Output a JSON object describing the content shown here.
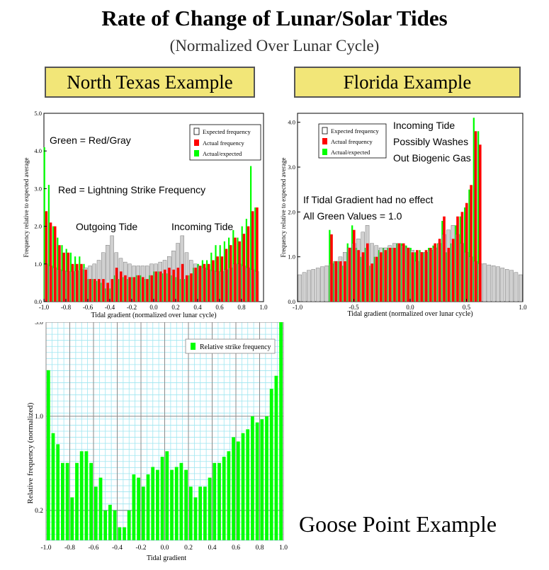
{
  "header": {
    "title": "Rate of Change of Lunar/Solar Tides",
    "subtitle": "(Normalized Over Lunar Cycle)"
  },
  "panels": {
    "north_texas_label": "North Texas Example",
    "florida_label": "Florida Example",
    "goose_point_label": "Goose Point Example"
  },
  "colors": {
    "expected": "#c8c8c8",
    "actual": "#ff0000",
    "ratio": "#00ff00",
    "label_box": "#f2e678",
    "grid_cyan": "#9fe6f0"
  },
  "chart_data": [
    {
      "id": "north_texas",
      "type": "bar",
      "xlabel": "Tidal gradient (normalized over lunar cycle)",
      "ylabel": "Frequency relative to expected average",
      "xlim": [
        -1.0,
        1.0
      ],
      "ylim": [
        0.0,
        5.0
      ],
      "xticks": [
        "-1.0",
        "-0.8",
        "-0.6",
        "-0.4",
        "-0.2",
        "0.0",
        "0.2",
        "0.4",
        "0.6",
        "0.8",
        "1.0"
      ],
      "yticks": [
        "0.0",
        "1.0",
        "2.0",
        "3.0",
        "4.0",
        "5.0"
      ],
      "legend_position": "top-right",
      "legend": [
        "Expected frequency",
        "Actual frequency",
        "Actual/expected"
      ],
      "annotations": [
        "Green = Red/Gray",
        "Red = Lightning Strike Frequency",
        "Outgoing Tide",
        "Incoming Tide"
      ],
      "x": [
        -0.98,
        -0.94,
        -0.9,
        -0.86,
        -0.82,
        -0.78,
        -0.74,
        -0.7,
        -0.66,
        -0.62,
        -0.58,
        -0.54,
        -0.5,
        -0.46,
        -0.42,
        -0.38,
        -0.34,
        -0.3,
        -0.26,
        -0.22,
        -0.18,
        -0.14,
        -0.1,
        -0.06,
        -0.02,
        0.02,
        0.06,
        0.1,
        0.14,
        0.18,
        0.22,
        0.26,
        0.3,
        0.34,
        0.38,
        0.42,
        0.46,
        0.5,
        0.54,
        0.58,
        0.62,
        0.66,
        0.7,
        0.74,
        0.78,
        0.82,
        0.86,
        0.9,
        0.94
      ],
      "series": [
        {
          "name": "Expected frequency",
          "values": [
            1.0,
            0.95,
            0.9,
            0.85,
            0.82,
            0.8,
            0.8,
            0.82,
            0.85,
            0.9,
            0.95,
            1.0,
            1.1,
            1.3,
            1.5,
            1.75,
            1.3,
            1.15,
            1.05,
            1.0,
            0.95,
            0.95,
            0.95,
            0.95,
            1.0,
            1.0,
            1.05,
            1.1,
            1.2,
            1.35,
            1.55,
            1.75,
            1.3,
            1.1,
            1.0,
            0.95,
            0.9,
            0.85,
            0.82,
            0.8,
            0.8,
            0.85,
            0.9,
            1.0,
            1.0,
            0.95,
            0.9,
            0.85,
            0.8
          ]
        },
        {
          "name": "Actual frequency",
          "values": [
            2.4,
            2.1,
            2.0,
            1.5,
            1.3,
            1.3,
            1.0,
            1.0,
            1.0,
            0.85,
            0.6,
            0.6,
            0.6,
            0.6,
            0.5,
            0.6,
            0.9,
            0.8,
            0.7,
            0.65,
            0.65,
            0.7,
            0.65,
            0.6,
            0.7,
            0.8,
            0.8,
            0.85,
            0.9,
            0.85,
            0.9,
            1.0,
            0.7,
            0.75,
            0.9,
            0.95,
            1.0,
            1.0,
            1.1,
            1.2,
            1.2,
            1.4,
            1.5,
            1.7,
            1.6,
            1.8,
            2.0,
            2.4,
            2.5
          ]
        },
        {
          "name": "Actual/expected",
          "values": [
            4.1,
            3.1,
            2.0,
            1.7,
            1.5,
            1.4,
            1.3,
            1.2,
            1.2,
            1.0,
            0.6,
            0.6,
            0.55,
            0.5,
            0.35,
            0.35,
            0.7,
            0.6,
            0.65,
            0.6,
            0.65,
            0.7,
            0.7,
            0.6,
            0.7,
            0.8,
            0.8,
            0.75,
            0.75,
            0.7,
            0.65,
            0.6,
            0.6,
            0.7,
            0.9,
            1.0,
            1.1,
            1.1,
            1.3,
            1.5,
            1.5,
            1.6,
            1.7,
            1.9,
            1.7,
            2.0,
            2.2,
            3.6,
            2.5
          ]
        }
      ]
    },
    {
      "id": "florida",
      "type": "bar",
      "xlabel": "Tidal gradient (normalized over lunar cycle)",
      "ylabel": "Frequency relative to expected average",
      "xlim": [
        -1.0,
        1.0
      ],
      "ylim": [
        0.0,
        4.2
      ],
      "xticks": [
        "-1.0",
        "-0.5",
        "0.0",
        "0.5",
        "1.0"
      ],
      "yticks": [
        "0.0",
        "1.0",
        "2.0",
        "3.0",
        "4.0"
      ],
      "legend_position": "top-left",
      "legend": [
        "Expected frequency",
        "Actual frequency",
        "Actual/expected"
      ],
      "annotations": [
        "Incoming Tide",
        "Possibly Washes",
        "Out Biogenic Gas",
        "If Tidal Gradient had no effect",
        "All Green Values = 1.0"
      ],
      "x": [
        -0.98,
        -0.94,
        -0.9,
        -0.86,
        -0.82,
        -0.78,
        -0.74,
        -0.7,
        -0.66,
        -0.62,
        -0.58,
        -0.54,
        -0.5,
        -0.46,
        -0.42,
        -0.38,
        -0.34,
        -0.3,
        -0.26,
        -0.22,
        -0.18,
        -0.14,
        -0.1,
        -0.06,
        -0.02,
        0.02,
        0.06,
        0.1,
        0.14,
        0.18,
        0.22,
        0.26,
        0.3,
        0.34,
        0.38,
        0.42,
        0.46,
        0.5,
        0.54,
        0.58,
        0.62,
        0.66,
        0.7,
        0.74,
        0.78,
        0.82,
        0.86,
        0.9,
        0.94,
        0.98
      ],
      "series": [
        {
          "name": "Expected frequency",
          "values": [
            0.6,
            0.65,
            0.7,
            0.72,
            0.75,
            0.78,
            0.8,
            0.85,
            0.9,
            1.0,
            1.1,
            1.2,
            1.3,
            1.4,
            1.55,
            1.7,
            1.3,
            1.25,
            1.2,
            1.2,
            1.25,
            1.3,
            1.3,
            1.25,
            1.2,
            1.15,
            0.9,
            1.1,
            1.1,
            1.15,
            1.2,
            1.3,
            1.5,
            1.6,
            1.7,
            1.5,
            1.3,
            1.1,
            1.0,
            0.9,
            0.85,
            0.85,
            0.82,
            0.8,
            0.78,
            0.75,
            0.72,
            0.7,
            0.65,
            0.6
          ]
        },
        {
          "name": "Actual frequency",
          "values": [
            0,
            0,
            0,
            0,
            0,
            0,
            0,
            1.5,
            0.9,
            0.9,
            0.9,
            1.2,
            1.6,
            1.15,
            1.1,
            1.3,
            0.85,
            1.0,
            1.1,
            1.15,
            1.2,
            1.2,
            1.3,
            1.3,
            1.2,
            1.1,
            1.15,
            1.1,
            1.15,
            1.2,
            1.3,
            1.4,
            1.9,
            1.2,
            1.4,
            1.9,
            2.0,
            2.2,
            2.6,
            3.8,
            3.5,
            0,
            0,
            0,
            0,
            0,
            0,
            0,
            0,
            0
          ]
        },
        {
          "name": "Actual/expected",
          "values": [
            0,
            0,
            0,
            0,
            0,
            0,
            0,
            1.6,
            0.9,
            0.9,
            0.8,
            1.3,
            1.7,
            1.2,
            1.0,
            1.2,
            0.8,
            1.0,
            1.15,
            1.2,
            1.2,
            1.2,
            1.3,
            1.3,
            1.25,
            1.2,
            1.1,
            1.15,
            1.1,
            1.2,
            1.25,
            1.3,
            1.8,
            1.1,
            1.3,
            1.7,
            1.9,
            2.1,
            2.5,
            4.1,
            3.8,
            0,
            0,
            0,
            0,
            0,
            0,
            0,
            0,
            0
          ]
        }
      ]
    },
    {
      "id": "goose_point",
      "type": "bar",
      "xlabel": "Tidal gradient",
      "ylabel": "Relative frequency (normalized)",
      "xlim": [
        -1.0,
        1.0
      ],
      "ylim": [
        0.12,
        5.0
      ],
      "yscale": "log",
      "grid": true,
      "xticks": [
        "-1.0",
        "-0.8",
        "-0.6",
        "-0.4",
        "-0.2",
        "0.0",
        "0.2",
        "0.4",
        "0.6",
        "0.8",
        "1.0"
      ],
      "yticks": [
        "0.2",
        "1.0",
        "5.0"
      ],
      "legend_position": "top-right",
      "legend": [
        "Relative strike frequency"
      ],
      "x": [
        -0.98,
        -0.94,
        -0.9,
        -0.86,
        -0.82,
        -0.78,
        -0.74,
        -0.7,
        -0.66,
        -0.62,
        -0.58,
        -0.54,
        -0.5,
        -0.46,
        -0.42,
        -0.38,
        -0.34,
        -0.3,
        -0.26,
        -0.22,
        -0.18,
        -0.14,
        -0.1,
        -0.06,
        -0.02,
        0.02,
        0.06,
        0.1,
        0.14,
        0.18,
        0.22,
        0.26,
        0.3,
        0.34,
        0.38,
        0.42,
        0.46,
        0.5,
        0.54,
        0.58,
        0.62,
        0.66,
        0.7,
        0.74,
        0.78,
        0.82,
        0.86,
        0.9,
        0.94,
        0.98
      ],
      "series": [
        {
          "name": "Relative strike frequency",
          "values": [
            2.2,
            0.75,
            0.62,
            0.45,
            0.45,
            0.25,
            0.45,
            0.55,
            0.55,
            0.45,
            0.3,
            0.35,
            0.2,
            0.22,
            0.2,
            0.15,
            0.15,
            0.2,
            0.37,
            0.35,
            0.3,
            0.37,
            0.42,
            0.4,
            0.5,
            0.55,
            0.4,
            0.42,
            0.45,
            0.4,
            0.3,
            0.25,
            0.3,
            0.3,
            0.35,
            0.45,
            0.45,
            0.5,
            0.55,
            0.7,
            0.65,
            0.75,
            0.8,
            1.0,
            0.9,
            0.95,
            1.0,
            1.6,
            2.0,
            5.0
          ]
        }
      ]
    }
  ]
}
